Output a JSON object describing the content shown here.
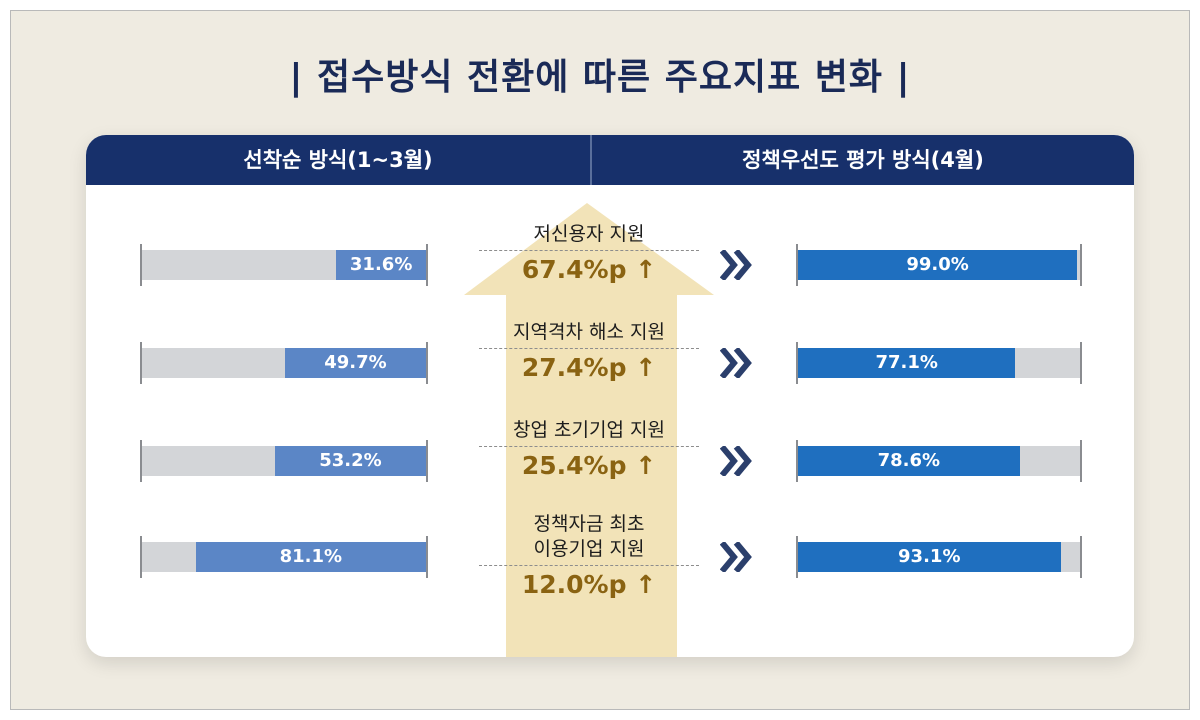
{
  "title": "| 접수방식 전환에 따른 주요지표 변화 |",
  "chart_data": {
    "type": "bar",
    "headers": {
      "left": "선착순 방식(1~3월)",
      "right": "정책우선도 평가 방식(4월)"
    },
    "categories": [
      "저신용자 지원",
      "지역격차 해소 지원",
      "창업 초기기업 지원",
      "정책자금 최초 이용기업 지원"
    ],
    "category_lines": [
      [
        "저신용자 지원"
      ],
      [
        "지역격차 해소 지원"
      ],
      [
        "창업 초기기업 지원"
      ],
      [
        "정책자금 최초",
        "이용기업 지원"
      ]
    ],
    "series": [
      {
        "name": "선착순 방식(1~3월)",
        "values": [
          31.6,
          49.7,
          53.2,
          81.1
        ],
        "labels": [
          "31.6%",
          "49.7%",
          "53.2%",
          "81.1%"
        ],
        "color": "#5b86c6"
      },
      {
        "name": "정책우선도 평가 방식(4월)",
        "values": [
          99.0,
          77.1,
          78.6,
          93.1
        ],
        "labels": [
          "99.0%",
          "77.1%",
          "78.6%",
          "93.1%"
        ],
        "color": "#1f6fbf"
      }
    ],
    "changes": [
      "67.4%p ↑",
      "27.4%p ↑",
      "25.4%p ↑",
      "12.0%p ↑"
    ],
    "ylim": [
      0,
      100
    ]
  },
  "colors": {
    "header": "#17306b",
    "track": "#d3d5d8",
    "arrow": "#f2e3b8",
    "change_text": "#8a6312",
    "chevron": "#2b3f6c"
  },
  "icons": {
    "separator": "double-chevron-right-icon",
    "background": "up-arrow-icon"
  }
}
